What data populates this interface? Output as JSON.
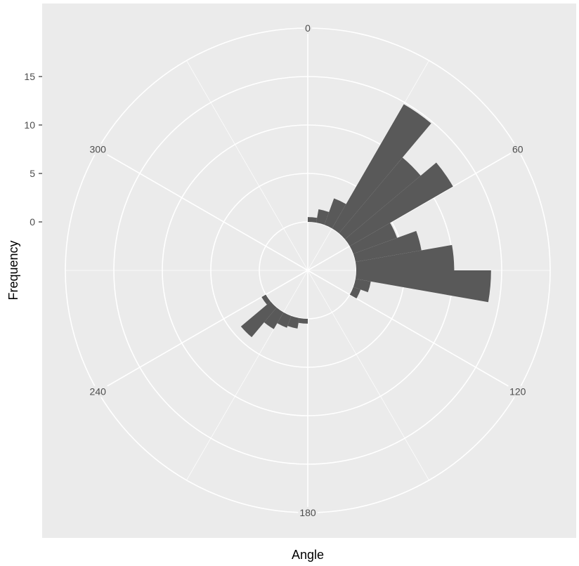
{
  "chart_data": {
    "type": "bar",
    "coord": "polar",
    "xlabel": "Angle",
    "ylabel": "Frequency",
    "angle_ticks": [
      "0",
      "60",
      "120",
      "180",
      "240",
      "300"
    ],
    "radial_ticks": [
      "0",
      "5",
      "10",
      "15"
    ],
    "ylim": [
      -5,
      20
    ],
    "bin_width": 10,
    "categories": [
      0,
      10,
      20,
      30,
      40,
      50,
      60,
      70,
      80,
      90,
      100,
      110,
      120,
      130,
      140,
      150,
      160,
      170,
      180,
      190,
      200,
      210,
      220,
      230,
      240,
      250,
      260,
      270,
      280,
      290,
      300,
      310,
      320,
      330,
      340,
      350
    ],
    "values": [
      0.5,
      1.4,
      2.9,
      14.8,
      10.2,
      12.3,
      4.8,
      6.9,
      10.1,
      13.9,
      1.6,
      0.8,
      0,
      0,
      0,
      0,
      0,
      0,
      0.5,
      1.1,
      1.3,
      2.0,
      4.0,
      0.5,
      0,
      0,
      0,
      0,
      0,
      0,
      0,
      0,
      0,
      0,
      0,
      0
    ],
    "colors": {
      "panel": "#ebebeb",
      "grid_major": "#ffffff",
      "bar": "#595959"
    }
  }
}
